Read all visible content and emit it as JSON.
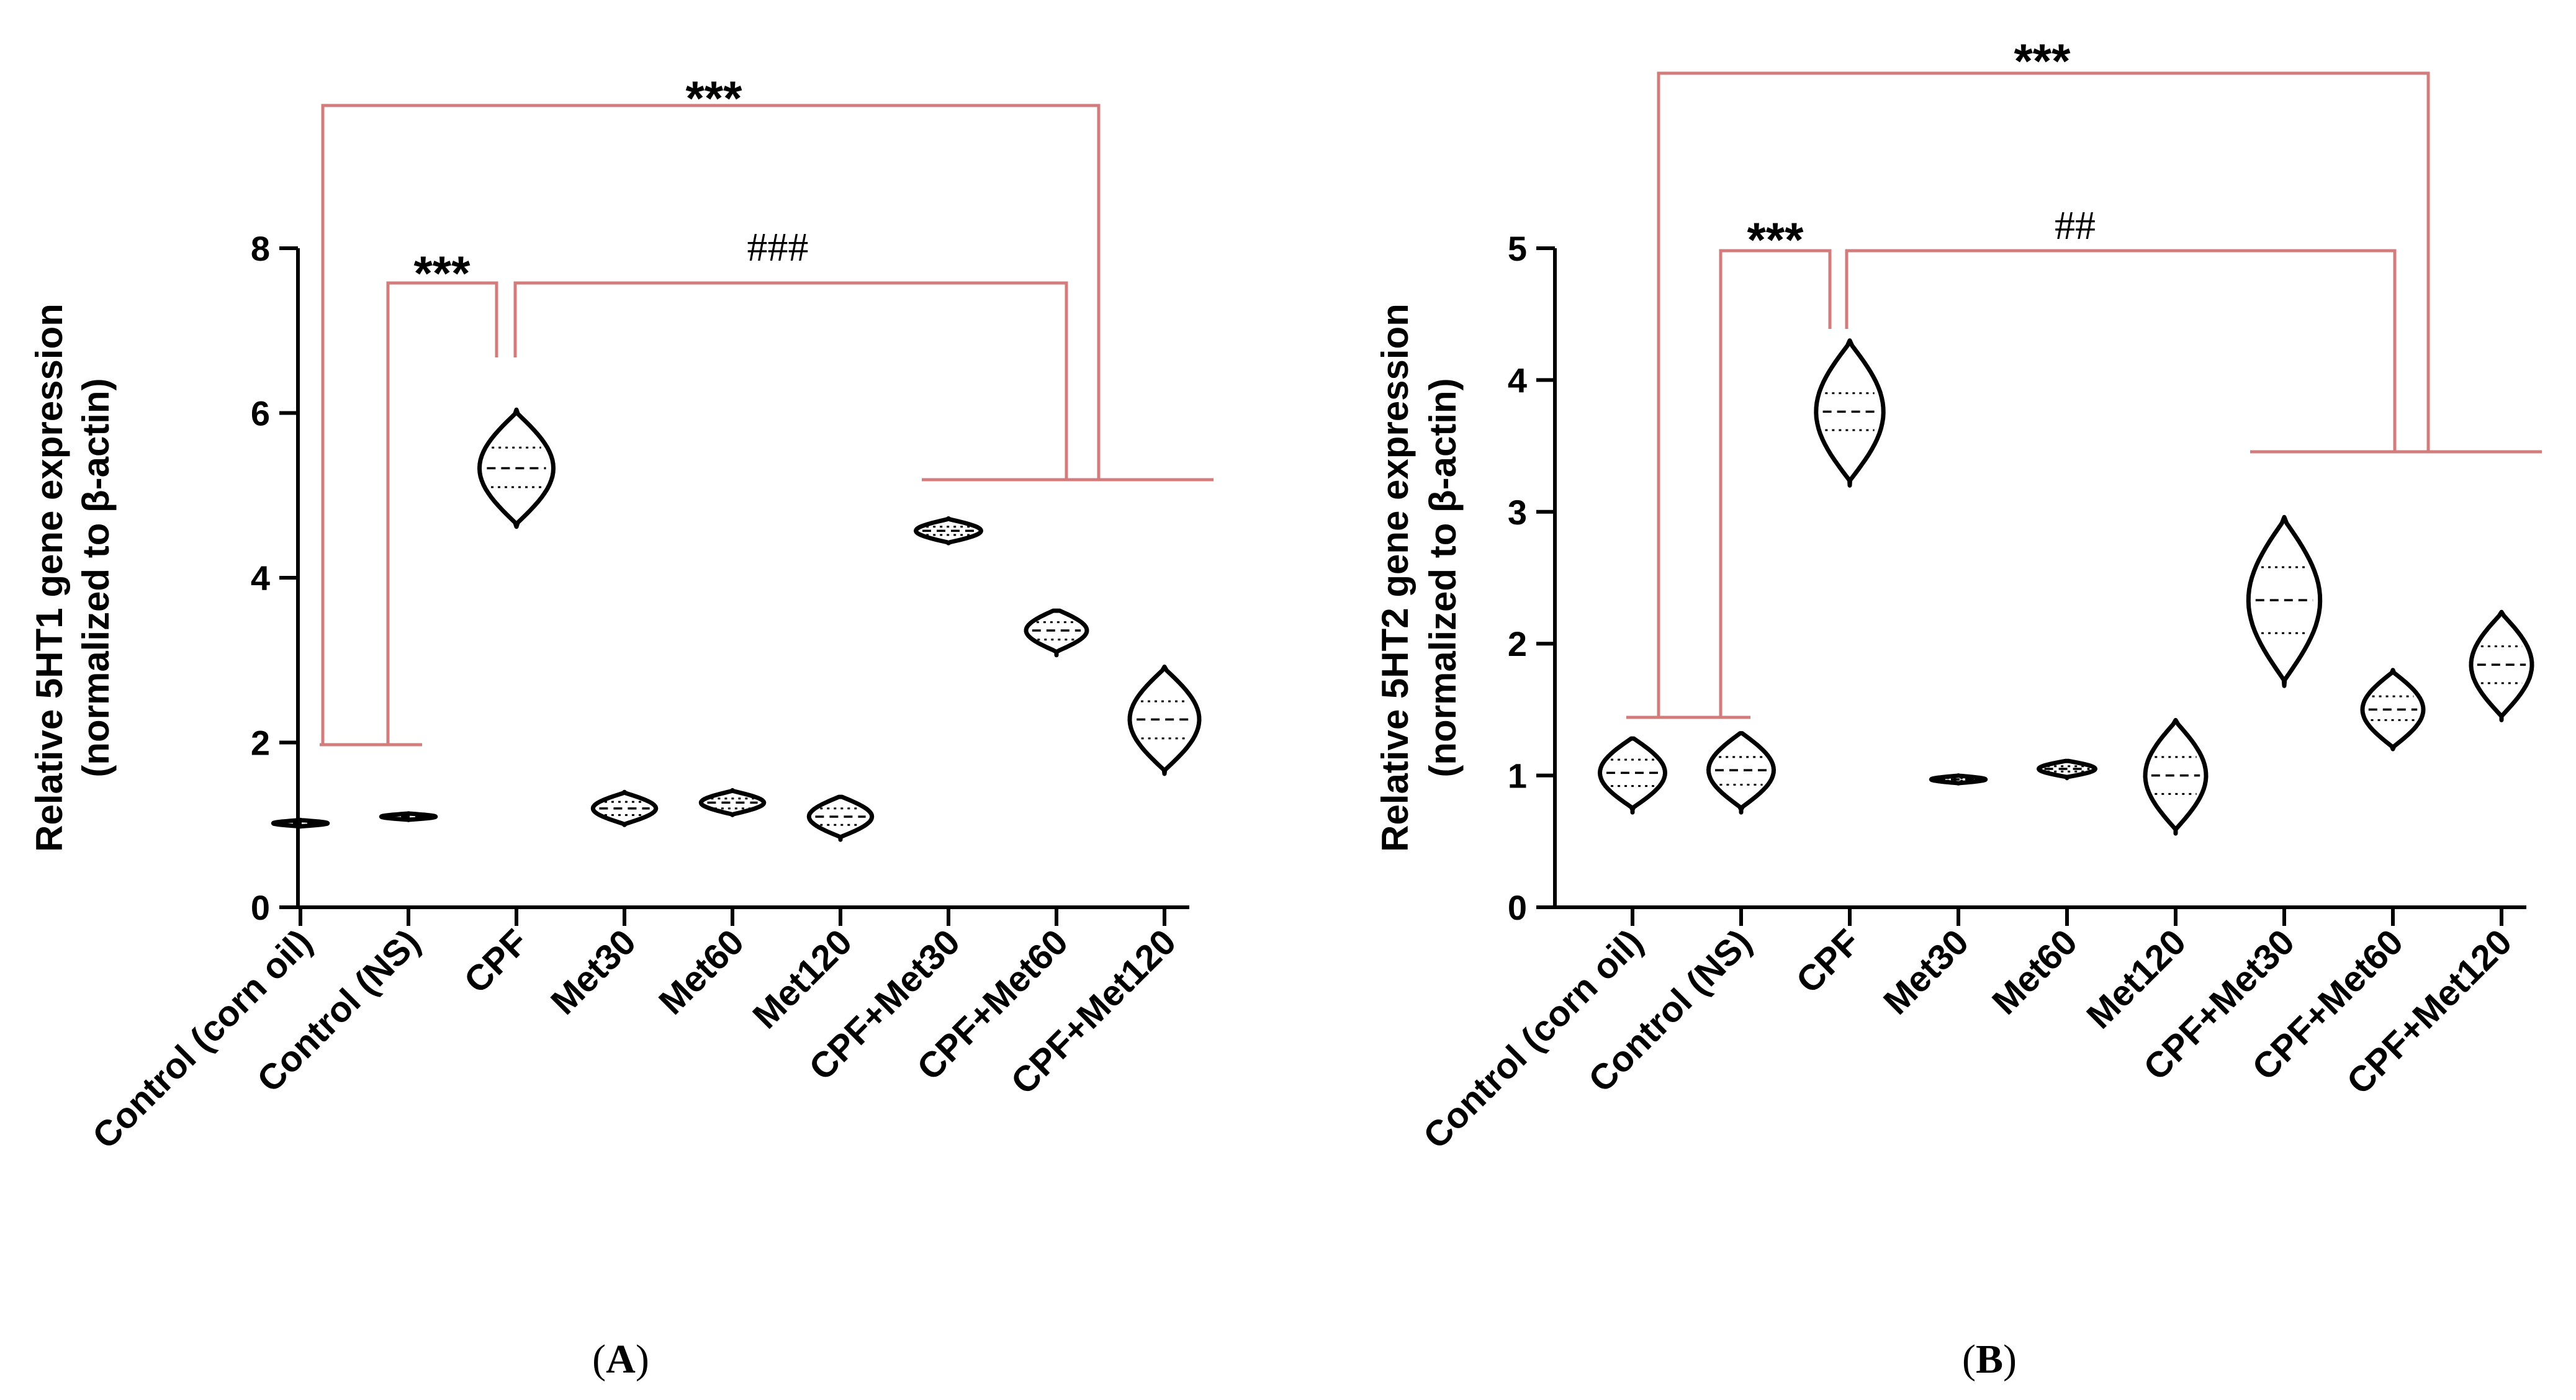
{
  "chart_data": [
    {
      "type": "violin",
      "panel": "A",
      "panel_label": {
        "open": "(",
        "letter": "A",
        "close": ")"
      },
      "ylabel_line1": "Relative 5HT1 gene expression",
      "ylabel_line2": "(normalized to β-actin)",
      "ylim": [
        0,
        8
      ],
      "yticks": [
        0,
        2,
        4,
        6,
        8
      ],
      "categories": [
        "Control (corn oil)",
        "Control (NS)",
        "CPF",
        "Met30",
        "Met60",
        "Met120",
        "CPF+Met30",
        "CPF+Met60",
        "CPF+Met120"
      ],
      "violins": [
        {
          "median": 1.02,
          "q1": 1.0,
          "q3": 1.04,
          "min": 0.98,
          "max": 1.06,
          "width": 0.5
        },
        {
          "median": 1.1,
          "q1": 1.08,
          "q3": 1.12,
          "min": 1.06,
          "max": 1.14,
          "width": 0.5
        },
        {
          "median": 5.33,
          "q1": 5.1,
          "q3": 5.58,
          "min": 4.62,
          "max": 6.04,
          "width": 0.68
        },
        {
          "median": 1.2,
          "q1": 1.12,
          "q3": 1.28,
          "min": 1.0,
          "max": 1.4,
          "width": 0.58
        },
        {
          "median": 1.27,
          "q1": 1.2,
          "q3": 1.32,
          "min": 1.12,
          "max": 1.42,
          "width": 0.58
        },
        {
          "median": 1.1,
          "q1": 1.0,
          "q3": 1.2,
          "min": 0.82,
          "max": 1.34,
          "width": 0.58
        },
        {
          "median": 4.57,
          "q1": 4.52,
          "q3": 4.62,
          "min": 4.42,
          "max": 4.72,
          "width": 0.6
        },
        {
          "median": 3.36,
          "q1": 3.25,
          "q3": 3.46,
          "min": 3.06,
          "max": 3.6,
          "width": 0.56
        },
        {
          "median": 2.28,
          "q1": 2.05,
          "q3": 2.5,
          "min": 1.62,
          "max": 2.92,
          "width": 0.64
        }
      ],
      "significance": [
        {
          "label": "***",
          "kind": "star",
          "comparison": "Control (corn oil) vs CPF+Met groups"
        },
        {
          "label": "***",
          "kind": "star",
          "comparison": "Control (NS) vs CPF"
        },
        {
          "label": "###",
          "kind": "hash",
          "comparison": "CPF vs CPF+Met groups"
        }
      ]
    },
    {
      "type": "violin",
      "panel": "B",
      "panel_label": {
        "open": "(",
        "letter": "B",
        "close": ")"
      },
      "ylabel_line1": "Relative 5HT2 gene expression",
      "ylabel_line2": "(normalized to β-actin)",
      "ylim": [
        0,
        5
      ],
      "yticks": [
        0,
        1,
        2,
        3,
        4,
        5
      ],
      "categories": [
        "Control (corn oil)",
        "Control (NS)",
        "CPF",
        "Met30",
        "Met60",
        "Met120",
        "CPF+Met30",
        "CPF+Met60",
        "CPF+Met120"
      ],
      "violins": [
        {
          "median": 1.02,
          "q1": 0.92,
          "q3": 1.12,
          "min": 0.72,
          "max": 1.28,
          "width": 0.6
        },
        {
          "median": 1.04,
          "q1": 0.93,
          "q3": 1.14,
          "min": 0.72,
          "max": 1.32,
          "width": 0.6
        },
        {
          "median": 3.76,
          "q1": 3.62,
          "q3": 3.9,
          "min": 3.2,
          "max": 4.3,
          "width": 0.62
        },
        {
          "median": 0.97,
          "q1": 0.96,
          "q3": 0.98,
          "min": 0.94,
          "max": 1.0,
          "width": 0.5
        },
        {
          "median": 1.05,
          "q1": 1.03,
          "q3": 1.07,
          "min": 0.98,
          "max": 1.11,
          "width": 0.52
        },
        {
          "median": 1.0,
          "q1": 0.86,
          "q3": 1.14,
          "min": 0.56,
          "max": 1.42,
          "width": 0.56
        },
        {
          "median": 2.33,
          "q1": 2.08,
          "q3": 2.58,
          "min": 1.68,
          "max": 2.96,
          "width": 0.66
        },
        {
          "median": 1.5,
          "q1": 1.42,
          "q3": 1.6,
          "min": 1.2,
          "max": 1.8,
          "width": 0.56
        },
        {
          "median": 1.84,
          "q1": 1.7,
          "q3": 1.98,
          "min": 1.42,
          "max": 2.24,
          "width": 0.56
        }
      ],
      "significance": [
        {
          "label": "***",
          "kind": "star",
          "comparison": "Controls vs CPF+Met groups"
        },
        {
          "label": "***",
          "kind": "star",
          "comparison": "Control (NS) vs CPF"
        },
        {
          "label": "##",
          "kind": "hash",
          "comparison": "CPF vs CPF+Met groups"
        }
      ]
    }
  ]
}
